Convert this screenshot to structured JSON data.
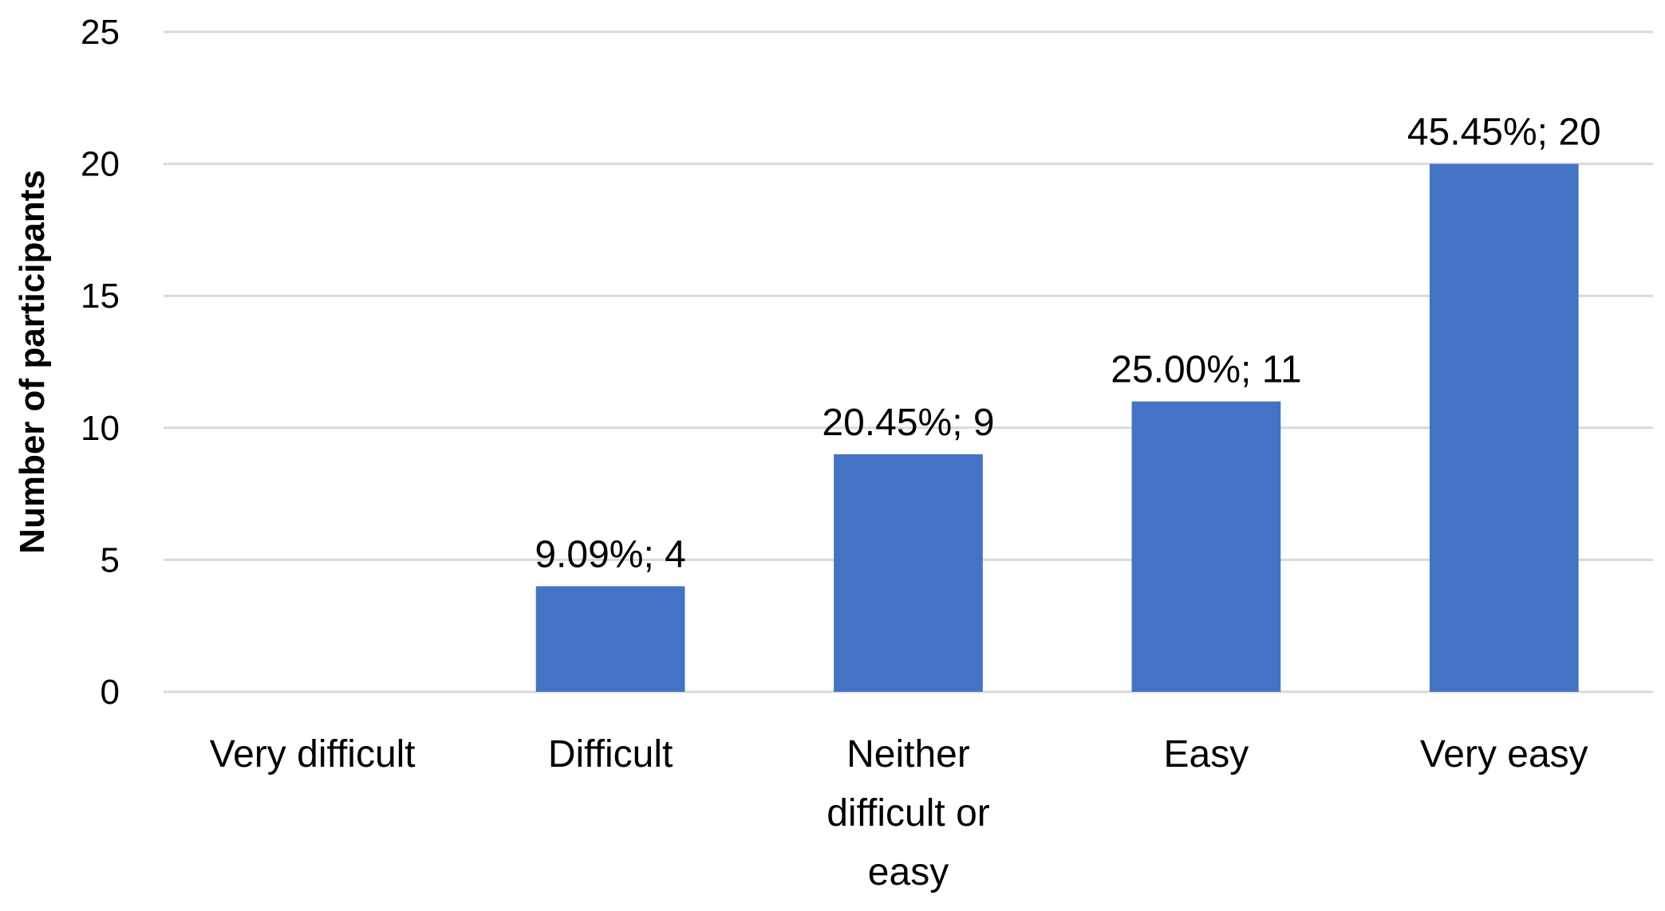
{
  "chart_data": {
    "type": "bar",
    "categories": [
      [
        "Very difficult"
      ],
      [
        "Difficult"
      ],
      [
        "Neither",
        "difficult or",
        "easy"
      ],
      [
        "Easy"
      ],
      [
        "Very easy"
      ]
    ],
    "values": [
      0,
      4,
      9,
      11,
      20
    ],
    "data_labels": [
      "",
      "9.09%; 4",
      "20.45%; 9",
      "25.00%; 11",
      "45.45%; 20"
    ],
    "ylabel": "Number of participants",
    "xlabel": "",
    "ylim": [
      0,
      25
    ],
    "yticks": [
      0,
      5,
      10,
      15,
      20,
      25
    ],
    "grid": true,
    "colors": {
      "bar": "#4472C4",
      "grid": "#D9D9D9"
    }
  }
}
